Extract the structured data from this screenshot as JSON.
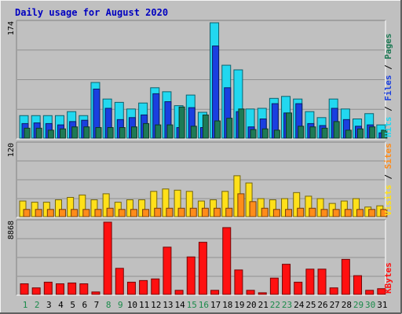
{
  "chart_data": {
    "type": "bar",
    "title": "Daily usage for August 2020",
    "colors": {
      "frame": "#c0c0c0",
      "plot_bg": "#c0c0c0",
      "title": "#0000c0",
      "pages": "#1e7a55",
      "files": "#1a3fe0",
      "hits": "#22d8f0",
      "visits": "#ffe01a",
      "sites": "#ff8c1a",
      "kbytes": "#ff1010",
      "weekend": "#1a8a4a"
    },
    "categories": [
      "1",
      "2",
      "3",
      "4",
      "5",
      "6",
      "7",
      "8",
      "9",
      "10",
      "11",
      "12",
      "13",
      "14",
      "15",
      "16",
      "17",
      "18",
      "19",
      "20",
      "21",
      "22",
      "23",
      "24",
      "25",
      "26",
      "27",
      "28",
      "29",
      "30",
      "31"
    ],
    "weekend_days": [
      "1",
      "2",
      "8",
      "9",
      "15",
      "16",
      "22",
      "23",
      "29",
      "30"
    ],
    "panels": [
      {
        "id": "top",
        "ymax_label": "174",
        "ymax": 174,
        "legend": [
          "Pages",
          "Files",
          "Hits"
        ],
        "legend_sep": " / ",
        "series": [
          {
            "name": "Hits",
            "values": [
              34,
              34,
              34,
              34,
              40,
              34,
              84,
              59,
              54,
              44,
              53,
              76,
              70,
              49,
              65,
              39,
              174,
              110,
              103,
              44,
              45,
              60,
              63,
              59,
              40,
              31,
              59,
              44,
              29,
              37,
              20
            ]
          },
          {
            "name": "Files",
            "values": [
              22,
              23,
              22,
              20,
              25,
              27,
              74,
              45,
              28,
              31,
              35,
              67,
              55,
              16,
              46,
              16,
              139,
              76,
              40,
              17,
              29,
              52,
              38,
              52,
              22,
              19,
              45,
              28,
              18,
              20,
              8
            ]
          },
          {
            "name": "Pages",
            "values": [
              15,
              15,
              12,
              14,
              17,
              17,
              16,
              16,
              16,
              17,
              22,
              20,
              20,
              47,
              18,
              35,
              26,
              30,
              44,
              13,
              14,
              12,
              38,
              18,
              17,
              15,
              25,
              12,
              14,
              17,
              12
            ]
          }
        ]
      },
      {
        "id": "middle",
        "ymax_label": "120",
        "ymax": 120,
        "legend": [
          "Sites",
          "Visits"
        ],
        "legend_sep": " / ",
        "series": [
          {
            "name": "Visits",
            "values": [
              26,
              24,
              24,
              28,
              32,
              36,
              28,
              38,
              24,
              28,
              28,
              42,
              46,
              44,
              42,
              26,
              28,
              42,
              68,
              56,
              30,
              28,
              30,
              40,
              34,
              30,
              22,
              26,
              30,
              16,
              18
            ]
          },
          {
            "name": "Sites",
            "values": [
              12,
              12,
              12,
              12,
              12,
              12,
              12,
              14,
              12,
              12,
              12,
              14,
              14,
              14,
              14,
              14,
              14,
              14,
              38,
              25,
              14,
              12,
              12,
              14,
              14,
              12,
              12,
              12,
              12,
              12,
              12
            ]
          }
        ]
      },
      {
        "id": "bottom",
        "ymax_label": "8868",
        "ymax": 8868,
        "legend": [
          "KBytes"
        ],
        "legend_sep": "",
        "series": [
          {
            "name": "KBytes",
            "values": [
              1300,
              800,
              1500,
              1300,
              1400,
              1300,
              300,
              8868,
              3200,
              1500,
              1700,
              1900,
              5800,
              500,
              4600,
              6400,
              500,
              8200,
              3000,
              500,
              200,
              2000,
              3700,
              1500,
              3100,
              3100,
              800,
              4300,
              2300,
              500,
              700
            ]
          }
        ]
      }
    ]
  }
}
